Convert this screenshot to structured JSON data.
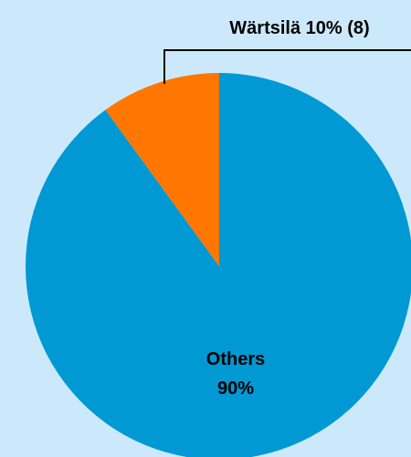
{
  "chart_data": {
    "type": "pie",
    "categories": [
      "Wärtsilä",
      "Others"
    ],
    "values": [
      10,
      90
    ],
    "value_labels": [
      "10% (8)",
      "90%"
    ],
    "colors": [
      "#ff7700",
      "#0099d4"
    ]
  }
}
